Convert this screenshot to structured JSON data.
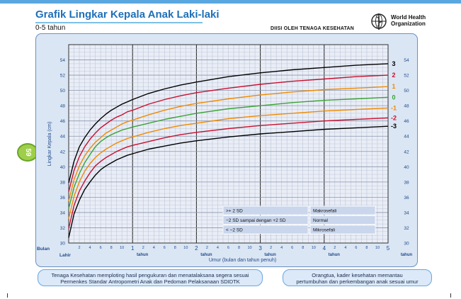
{
  "title": "Grafik Lingkar Kepala Anak Laki-laki",
  "subtitle": "0-5 tahun",
  "byline": "DIISI OLEH TENAGA KESEHATAN",
  "organization": {
    "line1": "World Health",
    "line2": "Organization"
  },
  "page_number": "59",
  "notes": {
    "left_line1": "Tenaga Kesehatan memploting hasil pengukuran dan menatalaksana segera sesuai",
    "left_line2": "Permenkes Standar Antropometri Anak dan Pedoman Pelaksanaan SDIDTK",
    "right_line1": "Orangtua, kader kesehatan memantau",
    "right_line2": "pertumbuhan dan perkembangan anak sesuai umur"
  },
  "colors": {
    "accent": "#1f6fb8",
    "plot_bg": "#e9edf6",
    "grid_minor": "#b6bfd3",
    "grid_major": "#222222",
    "sd3": "#000000",
    "sd2": "#c8102e",
    "sd1": "#f08a00",
    "median": "#3aa335",
    "legend_bg": "#c9d6ec"
  },
  "chart_data": {
    "type": "line",
    "title": "Grafik Lingkar Kepala Anak Laki-laki",
    "xlabel": "Umur (bulan dan tahun penuh)",
    "ylabel": "Lingkar Kepala (cm)",
    "xlim": [
      0,
      60
    ],
    "ylim": [
      30,
      56
    ],
    "yticks": [
      30,
      32,
      34,
      36,
      38,
      40,
      42,
      44,
      46,
      48,
      50,
      52,
      54
    ],
    "x_axis_caption": "Bulan",
    "birth_label": "Lahir",
    "year_unit": "tahun",
    "month_tick_labels": [
      "2",
      "4",
      "6",
      "8",
      "10"
    ],
    "year_tick_labels": [
      "1",
      "2",
      "3",
      "4",
      "5"
    ],
    "x_months": [
      0,
      1,
      2,
      3,
      4,
      5,
      6,
      7,
      8,
      9,
      10,
      11,
      12,
      15,
      18,
      21,
      24,
      30,
      36,
      42,
      48,
      54,
      60
    ],
    "series": [
      {
        "name": "3",
        "color": "#000000",
        "values": [
          37.9,
          40.7,
          42.6,
          43.8,
          44.8,
          45.6,
          46.3,
          46.9,
          47.4,
          47.8,
          48.2,
          48.5,
          48.8,
          49.6,
          50.2,
          50.7,
          51.1,
          51.8,
          52.3,
          52.7,
          53.0,
          53.3,
          53.5
        ]
      },
      {
        "name": "2",
        "color": "#c8102e",
        "values": [
          36.7,
          39.5,
          41.3,
          42.6,
          43.6,
          44.4,
          45.1,
          45.6,
          46.1,
          46.5,
          46.8,
          47.2,
          47.4,
          48.2,
          48.8,
          49.3,
          49.7,
          50.3,
          50.8,
          51.2,
          51.5,
          51.8,
          52.0
        ]
      },
      {
        "name": "1",
        "color": "#f08a00",
        "values": [
          35.5,
          38.3,
          40.1,
          41.4,
          42.4,
          43.2,
          43.8,
          44.4,
          44.8,
          45.2,
          45.6,
          45.9,
          46.1,
          46.8,
          47.4,
          47.9,
          48.3,
          48.9,
          49.4,
          49.8,
          50.1,
          50.3,
          50.5
        ]
      },
      {
        "name": "0",
        "color": "#3aa335",
        "values": [
          34.5,
          37.3,
          39.1,
          40.5,
          41.6,
          42.6,
          43.3,
          43.8,
          44.2,
          44.5,
          44.8,
          45.0,
          45.2,
          45.7,
          46.2,
          46.6,
          47.0,
          47.6,
          48.0,
          48.4,
          48.7,
          48.9,
          49.1
        ]
      },
      {
        "name": "-1",
        "color": "#f08a00",
        "values": [
          33.2,
          36.1,
          38.0,
          39.4,
          40.4,
          41.2,
          41.8,
          42.3,
          42.7,
          43.1,
          43.4,
          43.7,
          43.9,
          44.5,
          45.0,
          45.4,
          45.7,
          46.3,
          46.7,
          47.0,
          47.3,
          47.5,
          47.7
        ]
      },
      {
        "name": "-2",
        "color": "#c8102e",
        "values": [
          31.9,
          34.9,
          36.8,
          38.1,
          39.2,
          40.1,
          40.7,
          41.2,
          41.6,
          42.0,
          42.3,
          42.6,
          42.8,
          43.3,
          43.8,
          44.2,
          44.5,
          45.0,
          45.4,
          45.7,
          46.0,
          46.2,
          46.4
        ]
      },
      {
        "name": "-3",
        "color": "#000000",
        "values": [
          30.7,
          33.8,
          35.6,
          37.0,
          38.0,
          38.9,
          39.6,
          40.1,
          40.5,
          40.9,
          41.2,
          41.5,
          41.7,
          42.3,
          42.7,
          43.1,
          43.4,
          43.9,
          44.3,
          44.6,
          44.9,
          45.1,
          45.3
        ]
      }
    ],
    "legend": [
      {
        "condition": ">+ 2 SD",
        "category": "Makrosefali"
      },
      {
        "condition": "−2 SD sampai dengan +2 SD",
        "category": "Normal"
      },
      {
        "condition": "< −2 SD",
        "category": "Mikrosefali"
      }
    ]
  }
}
